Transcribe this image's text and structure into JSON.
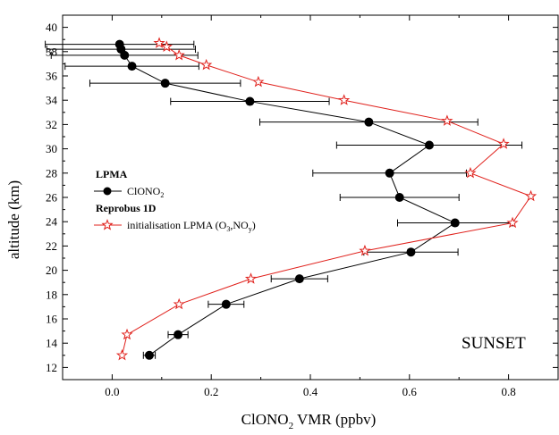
{
  "chart_data": {
    "type": "line",
    "title": "",
    "xlabel": {
      "main": "ClONO",
      "sub": "2",
      "rest": " VMR (ppbv)"
    },
    "ylabel": "altitude (km)",
    "xlim": [
      -0.1,
      0.9
    ],
    "ylim": [
      11,
      41
    ],
    "x_ticks": [
      0.0,
      0.2,
      0.4,
      0.6,
      0.8
    ],
    "x_tick_labels": [
      "0.0",
      "0.2",
      "0.4",
      "0.6",
      "0.8"
    ],
    "y_ticks": [
      12,
      14,
      16,
      18,
      20,
      22,
      24,
      26,
      28,
      30,
      32,
      34,
      36,
      38,
      40
    ],
    "y_tick_labels": [
      "12",
      "14",
      "16",
      "18",
      "20",
      "22",
      "24",
      "26",
      "28",
      "30",
      "32",
      "34",
      "36",
      "38",
      "40"
    ],
    "grid": false,
    "legend_position": "left",
    "annotation": "SUNSET",
    "legend": {
      "group1_title": "LPMA",
      "group2_title": "Reprobus 1D",
      "entry1": {
        "main": "ClONO",
        "sub": "2",
        "rest": ""
      },
      "entry2": {
        "pre": "initialisation LPMA (O",
        "sub1": "3",
        "mid": ",NO",
        "sub2": "y",
        "post": ")"
      }
    },
    "series": [
      {
        "key": "lpma",
        "color": "#000000",
        "marker": "circle",
        "points": [
          {
            "y": 13.0,
            "x": 0.075,
            "xerr": 0.012
          },
          {
            "y": 14.7,
            "x": 0.133,
            "xerr": 0.02
          },
          {
            "y": 17.2,
            "x": 0.23,
            "xerr": 0.036
          },
          {
            "y": 19.3,
            "x": 0.378,
            "xerr": 0.057
          },
          {
            "y": 21.5,
            "x": 0.603,
            "xerr": 0.095
          },
          {
            "y": 23.9,
            "x": 0.692,
            "xerr": 0.116
          },
          {
            "y": 26.0,
            "x": 0.58,
            "xerr": 0.12
          },
          {
            "y": 28.0,
            "x": 0.56,
            "xerr": 0.155
          },
          {
            "y": 30.3,
            "x": 0.64,
            "xerr": 0.187
          },
          {
            "y": 32.2,
            "x": 0.518,
            "xerr": 0.22
          },
          {
            "y": 33.9,
            "x": 0.278,
            "xerr": 0.16
          },
          {
            "y": 35.4,
            "x": 0.107,
            "xerr": 0.152
          },
          {
            "y": 36.8,
            "x": 0.04,
            "xerr": 0.135
          },
          {
            "y": 37.7,
            "x": 0.025,
            "xerr": 0.148
          },
          {
            "y": 38.2,
            "x": 0.018,
            "xerr": 0.15
          },
          {
            "y": 38.6,
            "x": 0.015,
            "xerr": 0.15
          }
        ]
      },
      {
        "key": "reprobus",
        "color": "#e0201b",
        "marker": "star",
        "points": [
          {
            "y": 13.0,
            "x": 0.02
          },
          {
            "y": 14.7,
            "x": 0.03
          },
          {
            "y": 17.2,
            "x": 0.135
          },
          {
            "y": 19.3,
            "x": 0.28
          },
          {
            "y": 21.6,
            "x": 0.51
          },
          {
            "y": 23.9,
            "x": 0.808
          },
          {
            "y": 26.1,
            "x": 0.845
          },
          {
            "y": 28.0,
            "x": 0.723
          },
          {
            "y": 30.4,
            "x": 0.79
          },
          {
            "y": 32.3,
            "x": 0.676
          },
          {
            "y": 34.0,
            "x": 0.468
          },
          {
            "y": 35.5,
            "x": 0.295
          },
          {
            "y": 36.9,
            "x": 0.19
          },
          {
            "y": 37.7,
            "x": 0.135
          },
          {
            "y": 38.4,
            "x": 0.11
          },
          {
            "y": 38.7,
            "x": 0.095
          }
        ]
      }
    ]
  }
}
